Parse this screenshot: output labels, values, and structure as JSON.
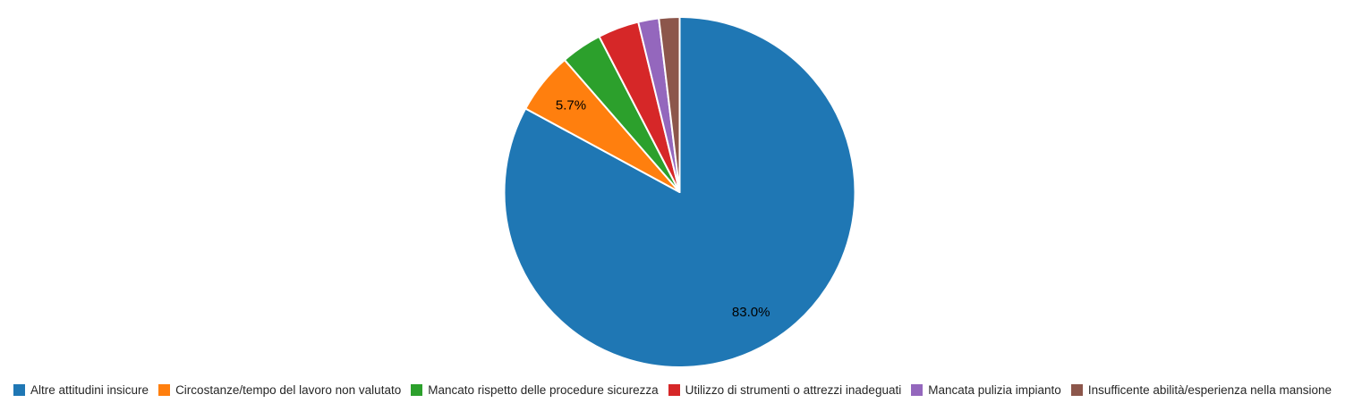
{
  "chart_data": {
    "type": "pie",
    "title": "",
    "start_angle": "12-o-clock",
    "direction": "clockwise",
    "legend_position": "bottom",
    "slice_border_color": "#ffffff",
    "label_color": "#000000",
    "slices": [
      {
        "label": "Altre attitudini insicure",
        "value": 83.0,
        "color": "#1f77b4",
        "pct_label": "83.0%",
        "show_pct": true
      },
      {
        "label": "Circostanze/tempo del lavoro non valutato",
        "value": 5.7,
        "color": "#ff7f0e",
        "pct_label": "5.7%",
        "show_pct": true
      },
      {
        "label": "Mancato rispetto delle procedure sicurezza",
        "value": 3.8,
        "color": "#2ca02c",
        "pct_label": "",
        "show_pct": false
      },
      {
        "label": "Utilizzo di strumenti o attrezzi inadeguati",
        "value": 3.8,
        "color": "#d62728",
        "pct_label": "",
        "show_pct": false
      },
      {
        "label": "Mancata pulizia impianto",
        "value": 1.9,
        "color": "#9467bd",
        "pct_label": "",
        "show_pct": false
      },
      {
        "label": "Insufficente abilità/esperienza nella mansione",
        "value": 1.9,
        "color": "#8c564b",
        "pct_label": "",
        "show_pct": false
      }
    ]
  }
}
